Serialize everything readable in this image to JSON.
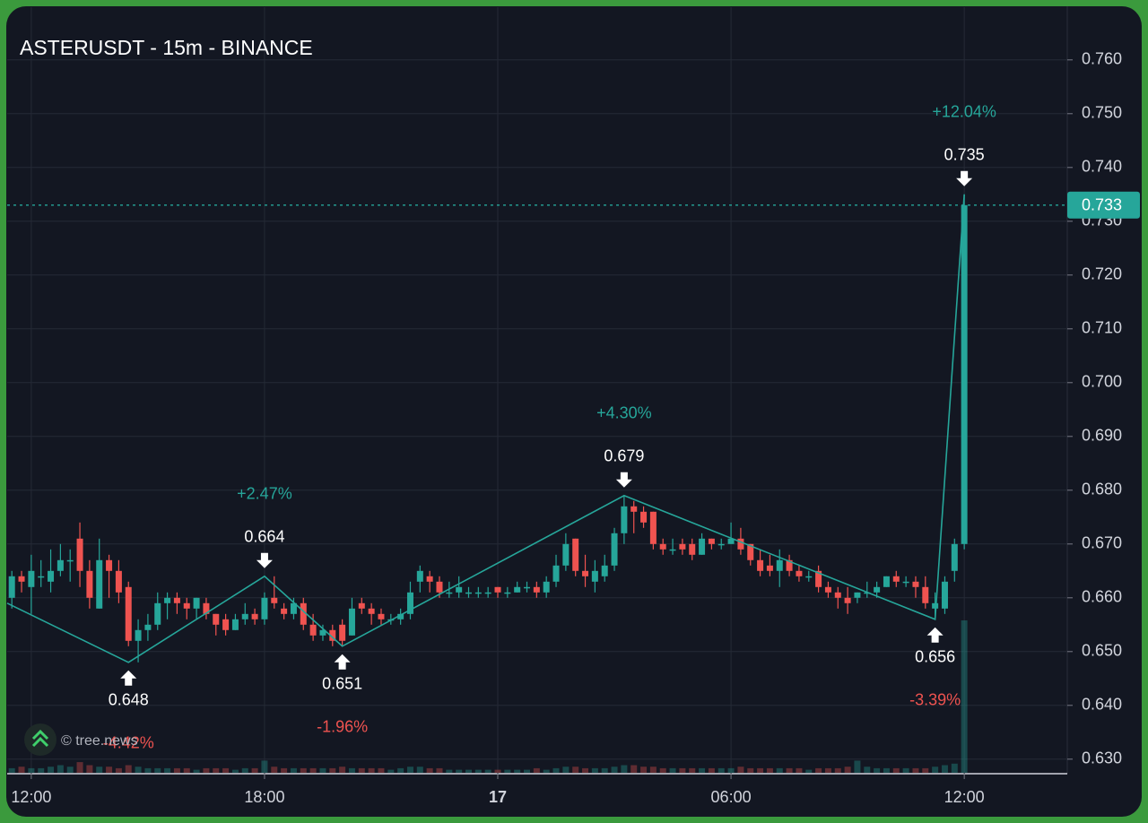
{
  "chart_data": {
    "type": "candlestick",
    "title": "ASTERUSDT - 15m - BINANCE",
    "watermark": "© tree.news",
    "up_color": "#26a69a",
    "down_color": "#ef5350",
    "zigzag_color": "#26a69a",
    "grid": true,
    "xlim": [
      11.38,
      38.65
    ],
    "xticks": [
      {
        "value": 12,
        "label": "12:00"
      },
      {
        "value": 18,
        "label": "18:00"
      },
      {
        "value": 24,
        "label": "17"
      },
      {
        "value": 30,
        "label": "06:00"
      },
      {
        "value": 36,
        "label": "12:00"
      }
    ],
    "ylim": [
      0.6273,
      0.7698
    ],
    "yticks": [
      {
        "value": 0.63,
        "label": "0.630"
      },
      {
        "value": 0.64,
        "label": "0.640"
      },
      {
        "value": 0.65,
        "label": "0.650"
      },
      {
        "value": 0.66,
        "label": "0.660"
      },
      {
        "value": 0.67,
        "label": "0.670"
      },
      {
        "value": 0.68,
        "label": "0.680"
      },
      {
        "value": 0.69,
        "label": "0.690"
      },
      {
        "value": 0.7,
        "label": "0.700"
      },
      {
        "value": 0.71,
        "label": "0.710"
      },
      {
        "value": 0.72,
        "label": "0.720"
      },
      {
        "value": 0.73,
        "label": "0.730"
      },
      {
        "value": 0.74,
        "label": "0.740"
      },
      {
        "value": 0.75,
        "label": "0.750"
      },
      {
        "value": 0.76,
        "label": "0.760"
      }
    ],
    "last_price": 0.733,
    "candles": {
      "x": [
        11.5,
        11.75,
        12,
        12.25,
        12.5,
        12.75,
        13,
        13.25,
        13.5,
        13.75,
        14,
        14.25,
        14.5,
        14.75,
        15,
        15.25,
        15.5,
        15.75,
        16,
        16.25,
        16.5,
        16.75,
        17,
        17.25,
        17.5,
        17.75,
        18,
        18.25,
        18.5,
        18.75,
        19,
        19.25,
        19.5,
        19.75,
        20,
        20.25,
        20.5,
        20.75,
        21,
        21.25,
        21.5,
        21.75,
        22,
        22.25,
        22.5,
        22.75,
        23,
        23.25,
        23.5,
        23.75,
        24,
        24.25,
        24.5,
        24.75,
        25,
        25.25,
        25.5,
        25.75,
        26,
        26.25,
        26.5,
        26.75,
        27,
        27.25,
        27.5,
        27.75,
        28,
        28.25,
        28.5,
        28.75,
        29,
        29.25,
        29.5,
        29.75,
        30,
        30.25,
        30.5,
        30.75,
        31,
        31.25,
        31.5,
        31.75,
        32,
        32.25,
        32.5,
        32.75,
        33,
        33.25,
        33.5,
        33.75,
        34,
        34.25,
        34.5,
        34.75,
        35,
        35.25,
        35.5,
        35.75,
        36
      ],
      "open": [
        0.66,
        0.664,
        0.662,
        0.664,
        0.663,
        0.665,
        0.667,
        0.671,
        0.665,
        0.658,
        0.667,
        0.665,
        0.662,
        0.652,
        0.654,
        0.655,
        0.659,
        0.66,
        0.659,
        0.658,
        0.659,
        0.657,
        0.656,
        0.654,
        0.656,
        0.657,
        0.656,
        0.66,
        0.658,
        0.657,
        0.659,
        0.655,
        0.653,
        0.654,
        0.655,
        0.653,
        0.659,
        0.658,
        0.657,
        0.656,
        0.656,
        0.657,
        0.663,
        0.664,
        0.663,
        0.661,
        0.661,
        0.661,
        0.661,
        0.661,
        0.662,
        0.661,
        0.661,
        0.662,
        0.662,
        0.661,
        0.663,
        0.666,
        0.671,
        0.665,
        0.663,
        0.664,
        0.666,
        0.672,
        0.677,
        0.676,
        0.676,
        0.67,
        0.669,
        0.67,
        0.67,
        0.668,
        0.671,
        0.67,
        0.67,
        0.671,
        0.67,
        0.667,
        0.666,
        0.665,
        0.667,
        0.665,
        0.664,
        0.665,
        0.662,
        0.661,
        0.66,
        0.66,
        0.661,
        0.661,
        0.662,
        0.664,
        0.663,
        0.663,
        0.662,
        0.658,
        0.658,
        0.665,
        0.67
      ],
      "high": [
        0.665,
        0.665,
        0.668,
        0.667,
        0.669,
        0.67,
        0.669,
        0.674,
        0.667,
        0.671,
        0.668,
        0.667,
        0.663,
        0.656,
        0.657,
        0.661,
        0.661,
        0.661,
        0.66,
        0.66,
        0.66,
        0.657,
        0.657,
        0.657,
        0.659,
        0.658,
        0.661,
        0.664,
        0.659,
        0.66,
        0.66,
        0.657,
        0.655,
        0.655,
        0.656,
        0.66,
        0.66,
        0.659,
        0.658,
        0.657,
        0.658,
        0.663,
        0.666,
        0.665,
        0.664,
        0.663,
        0.664,
        0.662,
        0.662,
        0.662,
        0.662,
        0.662,
        0.663,
        0.663,
        0.663,
        0.664,
        0.668,
        0.672,
        0.671,
        0.668,
        0.667,
        0.668,
        0.673,
        0.679,
        0.678,
        0.677,
        0.676,
        0.671,
        0.671,
        0.671,
        0.671,
        0.672,
        0.671,
        0.671,
        0.674,
        0.673,
        0.67,
        0.669,
        0.668,
        0.669,
        0.668,
        0.666,
        0.665,
        0.666,
        0.663,
        0.662,
        0.662,
        0.661,
        0.663,
        0.663,
        0.664,
        0.665,
        0.664,
        0.664,
        0.664,
        0.661,
        0.664,
        0.671,
        0.735
      ],
      "low": [
        0.658,
        0.661,
        0.657,
        0.662,
        0.661,
        0.664,
        0.663,
        0.662,
        0.658,
        0.658,
        0.66,
        0.659,
        0.651,
        0.648,
        0.652,
        0.654,
        0.656,
        0.657,
        0.656,
        0.656,
        0.656,
        0.653,
        0.653,
        0.654,
        0.655,
        0.655,
        0.655,
        0.658,
        0.656,
        0.656,
        0.654,
        0.652,
        0.652,
        0.651,
        0.651,
        0.653,
        0.657,
        0.655,
        0.655,
        0.655,
        0.655,
        0.656,
        0.661,
        0.661,
        0.66,
        0.66,
        0.66,
        0.66,
        0.66,
        0.66,
        0.66,
        0.66,
        0.661,
        0.661,
        0.66,
        0.66,
        0.662,
        0.665,
        0.664,
        0.662,
        0.661,
        0.663,
        0.665,
        0.67,
        0.672,
        0.673,
        0.669,
        0.668,
        0.668,
        0.668,
        0.667,
        0.668,
        0.669,
        0.669,
        0.67,
        0.668,
        0.666,
        0.664,
        0.664,
        0.662,
        0.664,
        0.663,
        0.663,
        0.661,
        0.66,
        0.658,
        0.657,
        0.659,
        0.66,
        0.66,
        0.662,
        0.662,
        0.662,
        0.66,
        0.658,
        0.656,
        0.657,
        0.663,
        0.669
      ],
      "close": [
        0.664,
        0.663,
        0.665,
        0.664,
        0.665,
        0.667,
        0.667,
        0.665,
        0.66,
        0.667,
        0.665,
        0.661,
        0.652,
        0.654,
        0.655,
        0.659,
        0.66,
        0.659,
        0.658,
        0.66,
        0.657,
        0.655,
        0.654,
        0.656,
        0.657,
        0.656,
        0.66,
        0.659,
        0.657,
        0.659,
        0.655,
        0.653,
        0.654,
        0.652,
        0.652,
        0.658,
        0.658,
        0.657,
        0.656,
        0.656,
        0.657,
        0.661,
        0.665,
        0.663,
        0.661,
        0.661,
        0.662,
        0.661,
        0.661,
        0.661,
        0.661,
        0.661,
        0.662,
        0.662,
        0.661,
        0.663,
        0.666,
        0.67,
        0.665,
        0.664,
        0.665,
        0.666,
        0.672,
        0.677,
        0.676,
        0.674,
        0.67,
        0.669,
        0.669,
        0.669,
        0.668,
        0.671,
        0.67,
        0.67,
        0.671,
        0.669,
        0.667,
        0.665,
        0.665,
        0.667,
        0.665,
        0.664,
        0.664,
        0.662,
        0.661,
        0.66,
        0.659,
        0.661,
        0.661,
        0.662,
        0.664,
        0.663,
        0.663,
        0.662,
        0.659,
        0.659,
        0.663,
        0.67,
        0.733
      ],
      "volume": [
        3,
        4,
        3,
        3,
        4,
        5,
        4,
        7,
        5,
        4,
        4,
        3,
        5,
        4,
        3,
        3,
        3,
        3,
        3,
        2,
        3,
        3,
        3,
        2,
        3,
        3,
        8,
        4,
        3,
        3,
        3,
        3,
        3,
        3,
        4,
        3,
        3,
        3,
        3,
        2,
        3,
        4,
        4,
        3,
        3,
        2,
        2,
        2,
        2,
        2,
        2,
        2,
        2,
        2,
        3,
        2,
        3,
        4,
        4,
        3,
        3,
        3,
        4,
        5,
        5,
        4,
        4,
        3,
        3,
        3,
        3,
        3,
        3,
        3,
        3,
        4,
        3,
        3,
        3,
        3,
        3,
        3,
        2,
        3,
        3,
        3,
        4,
        8,
        4,
        3,
        3,
        3,
        3,
        3,
        3,
        4,
        5,
        6,
        100
      ]
    },
    "zigzag": {
      "x": [
        11.38,
        14.5,
        18,
        20,
        27.25,
        35.25,
        36
      ],
      "values": [
        0.659,
        0.648,
        0.664,
        0.651,
        0.679,
        0.656,
        0.735
      ],
      "changes": [
        null,
        -4.42,
        2.47,
        -1.96,
        4.3,
        -3.39,
        12.04
      ],
      "change_labels": [
        null,
        "-4.42%",
        "+2.47%",
        "-1.96%",
        "+4.30%",
        "-3.39%",
        "+12.04%"
      ]
    }
  }
}
